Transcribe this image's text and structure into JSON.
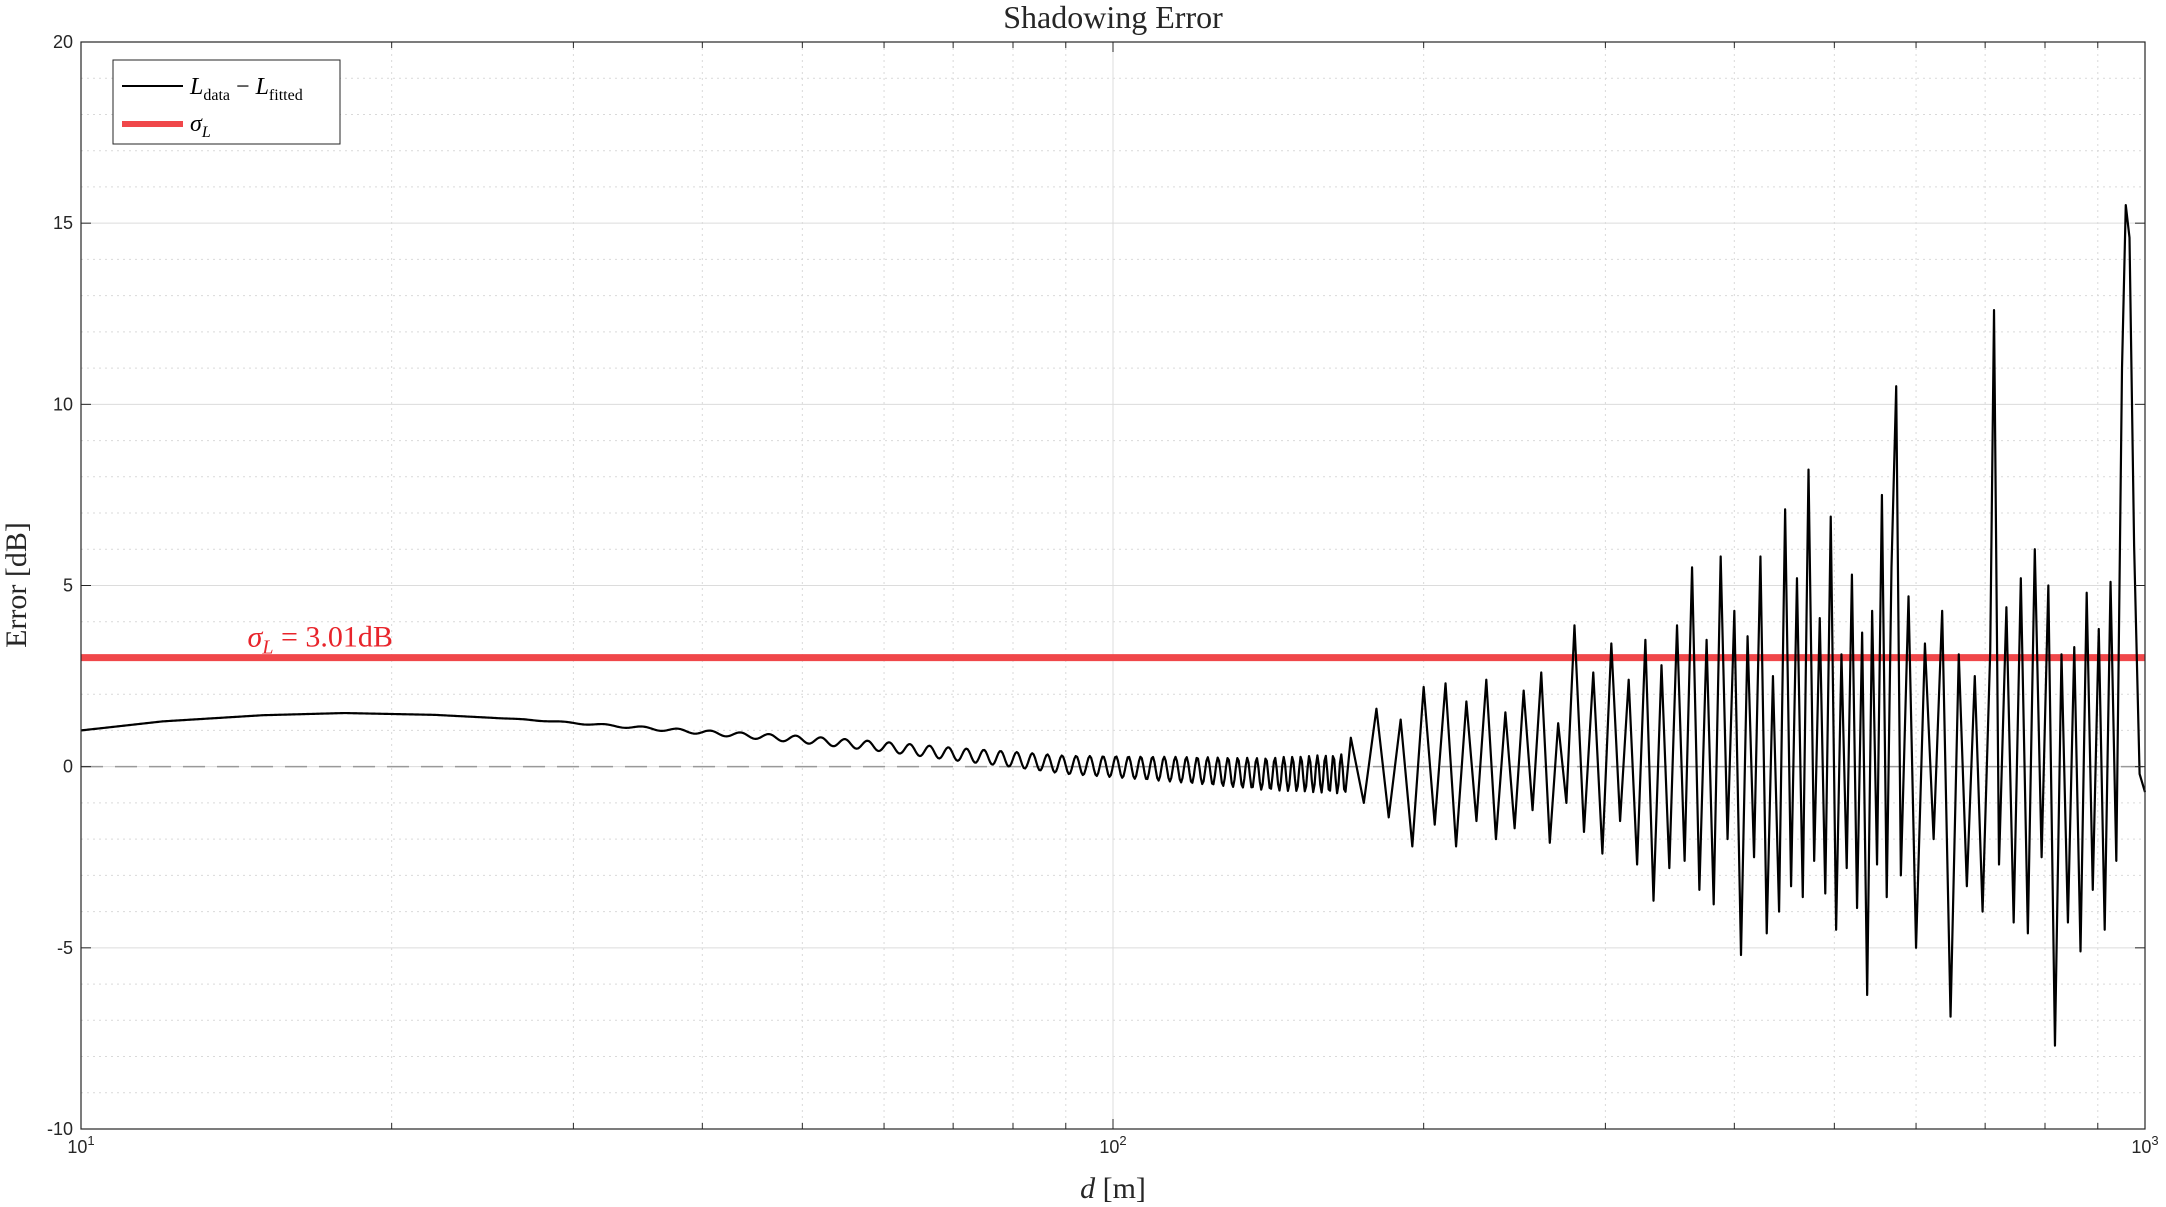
{
  "chart_data": {
    "type": "line",
    "title": "Shadowing Error",
    "xlabel": "d [m]",
    "ylabel": "Error [dB]",
    "xscale": "log",
    "xlim": [
      10,
      1000
    ],
    "ylim": [
      -10,
      20
    ],
    "grid": true,
    "minor_grid": true,
    "legend_position": "top-left",
    "x_ticks": [
      {
        "value": 10,
        "base": "10",
        "exp": "1"
      },
      {
        "value": 100,
        "base": "10",
        "exp": "2"
      },
      {
        "value": 1000,
        "base": "10",
        "exp": "3"
      }
    ],
    "y_ticks": [
      {
        "value": -10,
        "label": "-10"
      },
      {
        "value": -5,
        "label": "-5"
      },
      {
        "value": 0,
        "label": "0"
      },
      {
        "value": 5,
        "label": "5"
      },
      {
        "value": 10,
        "label": "10"
      },
      {
        "value": 15,
        "label": "15"
      },
      {
        "value": 20,
        "label": "20"
      }
    ],
    "legend": [
      {
        "name": "L_data − L_fitted",
        "color": "#000000"
      },
      {
        "name": "σ_L",
        "color": "#f0474a"
      }
    ],
    "annotation": {
      "text_symbol": "σ",
      "text_sub": "L",
      "text_value": " = 3.01dB",
      "color": "#e8242b",
      "x": 14.5,
      "y": 3.01
    },
    "reference_lines": [
      {
        "type": "horizontal",
        "y": 3.01,
        "color": "#f0474a",
        "style": "solid",
        "name": "σ_L"
      },
      {
        "type": "horizontal",
        "y": 0,
        "color": "#999999",
        "style": "dashed"
      }
    ],
    "series": [
      {
        "name": "L_data − L_fitted",
        "color": "#000000",
        "points": [
          [
            10,
            1.0
          ],
          [
            12,
            1.25
          ],
          [
            15,
            1.42
          ],
          [
            18,
            1.48
          ],
          [
            22,
            1.43
          ],
          [
            27,
            1.3
          ],
          [
            32,
            1.15
          ],
          [
            40,
            0.95
          ],
          [
            50,
            0.75
          ],
          [
            60,
            0.55
          ],
          [
            70,
            0.35
          ],
          [
            80,
            0.2
          ],
          [
            90,
            0.05
          ],
          [
            100,
            0.0
          ],
          [
            120,
            -0.1
          ],
          [
            140,
            -0.2
          ],
          [
            170,
            0.8
          ],
          [
            175,
            -1.0
          ],
          [
            180,
            1.6
          ],
          [
            185,
            -1.4
          ],
          [
            190,
            1.3
          ],
          [
            195,
            -2.2
          ],
          [
            200,
            2.2
          ],
          [
            205,
            -1.6
          ],
          [
            210,
            2.3
          ],
          [
            215,
            -2.2
          ],
          [
            220,
            1.8
          ],
          [
            225,
            -1.5
          ],
          [
            230,
            2.4
          ],
          [
            235,
            -2.0
          ],
          [
            240,
            1.5
          ],
          [
            245,
            -1.7
          ],
          [
            250,
            2.1
          ],
          [
            255,
            -1.2
          ],
          [
            260,
            2.6
          ],
          [
            265,
            -2.1
          ],
          [
            270,
            1.2
          ],
          [
            275,
            -1.0
          ],
          [
            280,
            3.9
          ],
          [
            286,
            -1.8
          ],
          [
            292,
            2.6
          ],
          [
            298,
            -2.4
          ],
          [
            304,
            3.4
          ],
          [
            310,
            -1.5
          ],
          [
            316,
            2.4
          ],
          [
            322,
            -2.7
          ],
          [
            328,
            3.5
          ],
          [
            334,
            -3.7
          ],
          [
            340,
            2.8
          ],
          [
            346,
            -2.8
          ],
          [
            352,
            3.9
          ],
          [
            358,
            -2.6
          ],
          [
            364,
            5.5
          ],
          [
            370,
            -3.4
          ],
          [
            376,
            3.5
          ],
          [
            382,
            -3.8
          ],
          [
            388,
            5.8
          ],
          [
            394,
            -2.0
          ],
          [
            400,
            4.3
          ],
          [
            406,
            -5.2
          ],
          [
            412,
            3.6
          ],
          [
            418,
            -2.5
          ],
          [
            424,
            5.8
          ],
          [
            430,
            -4.6
          ],
          [
            436,
            2.5
          ],
          [
            442,
            -4.0
          ],
          [
            448,
            7.1
          ],
          [
            454,
            -3.3
          ],
          [
            460,
            5.2
          ],
          [
            466,
            -3.6
          ],
          [
            472,
            8.2
          ],
          [
            478,
            -2.6
          ],
          [
            484,
            4.1
          ],
          [
            490,
            -3.5
          ],
          [
            496,
            6.9
          ],
          [
            502,
            -4.5
          ],
          [
            508,
            3.1
          ],
          [
            514,
            -2.8
          ],
          [
            520,
            5.3
          ],
          [
            526,
            -3.9
          ],
          [
            532,
            3.7
          ],
          [
            538,
            -6.3
          ],
          [
            544,
            4.3
          ],
          [
            550,
            -2.7
          ],
          [
            556,
            7.5
          ],
          [
            562,
            -3.6
          ],
          [
            568,
            5.5
          ],
          [
            574,
            10.5
          ],
          [
            580,
            -3.0
          ],
          [
            590,
            4.7
          ],
          [
            600,
            -5.0
          ],
          [
            612,
            3.4
          ],
          [
            624,
            -2.0
          ],
          [
            636,
            4.3
          ],
          [
            648,
            -6.9
          ],
          [
            660,
            3.1
          ],
          [
            672,
            -3.3
          ],
          [
            684,
            2.5
          ],
          [
            696,
            -4.0
          ],
          [
            708,
            3.2
          ],
          [
            714,
            12.6
          ],
          [
            722,
            -2.7
          ],
          [
            734,
            4.4
          ],
          [
            746,
            -4.3
          ],
          [
            758,
            5.2
          ],
          [
            770,
            -4.6
          ],
          [
            782,
            6.0
          ],
          [
            794,
            -2.5
          ],
          [
            806,
            5.0
          ],
          [
            818,
            -7.7
          ],
          [
            830,
            3.1
          ],
          [
            842,
            -4.3
          ],
          [
            854,
            3.3
          ],
          [
            866,
            -5.1
          ],
          [
            878,
            4.8
          ],
          [
            890,
            -3.4
          ],
          [
            902,
            3.8
          ],
          [
            914,
            -4.5
          ],
          [
            926,
            5.1
          ],
          [
            938,
            -2.6
          ],
          [
            950,
            11.0
          ],
          [
            958,
            15.5
          ],
          [
            966,
            14.6
          ],
          [
            976,
            6.1
          ],
          [
            988,
            -0.2
          ],
          [
            1000,
            -0.7
          ]
        ]
      }
    ]
  }
}
